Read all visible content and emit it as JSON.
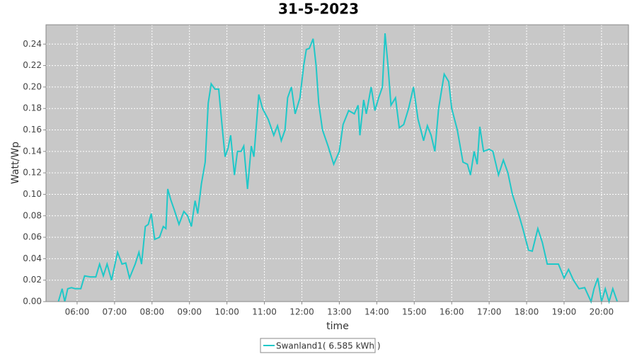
{
  "chart_data": {
    "type": "line",
    "title": "31-5-2023",
    "x_label": "time",
    "y_label": "Watt/Wp",
    "grid": true,
    "legend": "bottom",
    "x": [
      5.5,
      5.6,
      5.67,
      5.75,
      5.85,
      5.95,
      6.1,
      6.2,
      6.35,
      6.5,
      6.6,
      6.7,
      6.8,
      6.92,
      7.08,
      7.2,
      7.3,
      7.4,
      7.55,
      7.65,
      7.72,
      7.82,
      7.9,
      7.98,
      8.07,
      8.2,
      8.3,
      8.37,
      8.42,
      8.5,
      8.6,
      8.72,
      8.85,
      8.95,
      9.05,
      9.15,
      9.22,
      9.32,
      9.42,
      9.5,
      9.58,
      9.68,
      9.78,
      9.88,
      9.95,
      10.03,
      10.1,
      10.2,
      10.28,
      10.38,
      10.45,
      10.55,
      10.65,
      10.72,
      10.85,
      10.95,
      11.1,
      11.25,
      11.35,
      11.45,
      11.55,
      11.62,
      11.72,
      11.82,
      11.95,
      12.05,
      12.12,
      12.2,
      12.3,
      12.38,
      12.45,
      12.55,
      12.7,
      12.85,
      13.0,
      13.1,
      13.25,
      13.4,
      13.5,
      13.55,
      13.65,
      13.72,
      13.85,
      13.95,
      14.05,
      14.15,
      14.22,
      14.3,
      14.38,
      14.5,
      14.6,
      14.72,
      14.85,
      14.98,
      15.1,
      15.25,
      15.35,
      15.45,
      15.55,
      15.65,
      15.8,
      15.92,
      16.0,
      16.15,
      16.3,
      16.42,
      16.5,
      16.6,
      16.68,
      16.75,
      16.85,
      17.0,
      17.1,
      17.25,
      17.38,
      17.5,
      17.62,
      17.8,
      17.9,
      18.05,
      18.15,
      18.3,
      18.42,
      18.55,
      18.7,
      18.85,
      19.0,
      19.12,
      19.25,
      19.4,
      19.55,
      19.72,
      19.8,
      19.9,
      20.0,
      20.1,
      20.2,
      20.3,
      20.42
    ],
    "series": [
      {
        "name": "Swanland1( 6.585 kWh )",
        "color": "#1fc8c8",
        "values": [
          0,
          0.012,
          0,
          0.012,
          0.013,
          0.012,
          0.012,
          0.024,
          0.023,
          0.023,
          0.035,
          0.024,
          0.035,
          0.02,
          0.046,
          0.035,
          0.036,
          0.022,
          0.035,
          0.046,
          0.035,
          0.07,
          0.072,
          0.082,
          0.058,
          0.06,
          0.07,
          0.068,
          0.105,
          0.095,
          0.085,
          0.072,
          0.084,
          0.08,
          0.07,
          0.094,
          0.082,
          0.11,
          0.13,
          0.185,
          0.203,
          0.198,
          0.198,
          0.16,
          0.135,
          0.143,
          0.155,
          0.118,
          0.14,
          0.14,
          0.145,
          0.105,
          0.145,
          0.135,
          0.193,
          0.18,
          0.17,
          0.155,
          0.164,
          0.15,
          0.16,
          0.19,
          0.2,
          0.175,
          0.19,
          0.22,
          0.235,
          0.236,
          0.245,
          0.22,
          0.185,
          0.16,
          0.145,
          0.128,
          0.14,
          0.165,
          0.178,
          0.175,
          0.183,
          0.155,
          0.188,
          0.175,
          0.2,
          0.178,
          0.19,
          0.2,
          0.25,
          0.22,
          0.183,
          0.19,
          0.162,
          0.165,
          0.18,
          0.2,
          0.17,
          0.15,
          0.164,
          0.155,
          0.14,
          0.18,
          0.212,
          0.205,
          0.18,
          0.16,
          0.13,
          0.128,
          0.118,
          0.14,
          0.128,
          0.163,
          0.14,
          0.142,
          0.14,
          0.118,
          0.132,
          0.12,
          0.1,
          0.08,
          0.068,
          0.048,
          0.047,
          0.068,
          0.055,
          0.035,
          0.035,
          0.035,
          0.022,
          0.03,
          0.02,
          0.012,
          0.013,
          0,
          0.012,
          0.022,
          0,
          0.012,
          0,
          0.012,
          0
        ]
      }
    ],
    "xlim": [
      5.17,
      20.72
    ],
    "xticks": [
      {
        "value": 6,
        "label": "06:00"
      },
      {
        "value": 7,
        "label": "07:00"
      },
      {
        "value": 8,
        "label": "08:00"
      },
      {
        "value": 9,
        "label": "09:00"
      },
      {
        "value": 10,
        "label": "10:00"
      },
      {
        "value": 11,
        "label": "11:00"
      },
      {
        "value": 12,
        "label": "12:00"
      },
      {
        "value": 13,
        "label": "13:00"
      },
      {
        "value": 14,
        "label": "14:00"
      },
      {
        "value": 15,
        "label": "15:00"
      },
      {
        "value": 16,
        "label": "16:00"
      },
      {
        "value": 17,
        "label": "17:00"
      },
      {
        "value": 18,
        "label": "18:00"
      },
      {
        "value": 19,
        "label": "19:00"
      },
      {
        "value": 20,
        "label": "20:00"
      }
    ],
    "ylim": [
      0,
      0.258
    ],
    "yticks": [
      {
        "value": 0,
        "label": "0.00"
      },
      {
        "value": 0.02,
        "label": "0.02"
      },
      {
        "value": 0.04,
        "label": "0.04"
      },
      {
        "value": 0.06,
        "label": "0.06"
      },
      {
        "value": 0.08,
        "label": "0.08"
      },
      {
        "value": 0.1,
        "label": "0.10"
      },
      {
        "value": 0.12,
        "label": "0.12"
      },
      {
        "value": 0.14,
        "label": "0.14"
      },
      {
        "value": 0.16,
        "label": "0.16"
      },
      {
        "value": 0.18,
        "label": "0.18"
      },
      {
        "value": 0.2,
        "label": "0.20"
      },
      {
        "value": 0.22,
        "label": "0.22"
      },
      {
        "value": 0.24,
        "label": "0.24"
      }
    ]
  }
}
